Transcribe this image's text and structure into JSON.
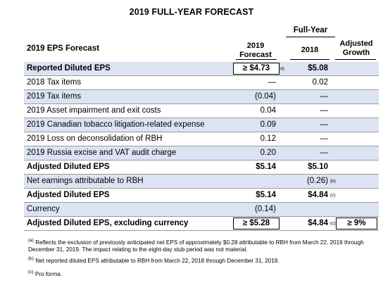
{
  "title": "2019 FULL-YEAR FORECAST",
  "group_header": "Full-Year",
  "row_header": "2019 EPS Forecast",
  "columns": {
    "c1_line1": "2019",
    "c1_line2": "Forecast",
    "c2": "2018",
    "c3_line1": "Adjusted",
    "c3_line2": "Growth"
  },
  "rows": [
    {
      "label": "Reported Diluted EPS",
      "v1": "≥  $4.73",
      "v1_note": "(a)",
      "v2": "$5.08"
    },
    {
      "label": "2018 Tax items",
      "v1": "—",
      "v2": "0.02"
    },
    {
      "label": "2019 Tax items",
      "v1": "(0.04)",
      "v2": "—"
    },
    {
      "label": "2019 Asset impairment and exit costs",
      "v1": "0.04",
      "v2": "—"
    },
    {
      "label": "2019 Canadian tobacco litigation-related expense",
      "v1": "0.09",
      "v2": "—"
    },
    {
      "label": "2019 Loss on deconsolidation of RBH",
      "v1": "0.12",
      "v2": "—"
    },
    {
      "label": "2019 Russia excise and VAT audit charge",
      "v1": "0.20",
      "v2": "—"
    },
    {
      "label": "Adjusted Diluted EPS",
      "v1": "$5.14",
      "v2": "$5.10"
    },
    {
      "label": "Net earnings attributable to RBH",
      "v1": "",
      "v2": "(0.26)",
      "v2_note": "(b)"
    },
    {
      "label": "Adjusted Diluted EPS",
      "v1": "$5.14",
      "v2": "$4.84",
      "v2_note": "(c)"
    },
    {
      "label": "Currency",
      "v1": "(0.14)",
      "v2": ""
    },
    {
      "label": "Adjusted Diluted EPS, excluding currency",
      "v1": "≥  $5.28",
      "v2": "$4.84",
      "v2_note": "(c)",
      "v3": "≥  9%"
    }
  ],
  "footnotes": {
    "a_mark": "(a)",
    "a": "Reflects the exclusion of previously anticipated net EPS of approximately $0.28 attributable to RBH from March 22, 2019 through December 31, 2019. The impact relating to the eight-day stub period was not material.",
    "b_mark": "(b)",
    "b": "Net reported diluted EPS attributable to RBH from March 22, 2018 through December 31, 2018.",
    "c_mark": "(c)",
    "c": "Pro forma."
  },
  "colors": {
    "shaded_row": "#dce3f3",
    "row_rule": "#9a9a9a"
  }
}
